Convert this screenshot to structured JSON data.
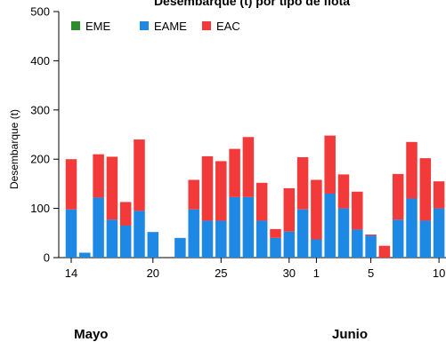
{
  "chart_data": {
    "type": "bar",
    "stacked": true,
    "title": "Desembarque (t) por tipo de flota",
    "ylabel": "Desembarque (t)",
    "xlabel": "",
    "ylim": [
      0,
      500
    ],
    "yticks": [
      0,
      100,
      200,
      300,
      400,
      500
    ],
    "grid": false,
    "legend_position": "top-left",
    "x": [
      "May 14",
      "May 15",
      "May 16",
      "May 17",
      "May 18",
      "May 19",
      "May 20",
      "May 21",
      "May 22",
      "May 23",
      "May 24",
      "May 25",
      "May 26",
      "May 27",
      "May 28",
      "May 29",
      "May 30",
      "May 31",
      "Jun 1",
      "Jun 2",
      "Jun 3",
      "Jun 4",
      "Jun 5",
      "Jun 6",
      "Jun 7",
      "Jun 8",
      "Jun 9",
      "Jun 10",
      "Jun 11",
      "Jun 12",
      "Jun 13"
    ],
    "x_ticks": [
      {
        "index": 0,
        "label": "14"
      },
      {
        "index": 6,
        "label": "20"
      },
      {
        "index": 11,
        "label": "25"
      },
      {
        "index": 16,
        "label": "30"
      },
      {
        "index": 18,
        "label": "1"
      },
      {
        "index": 22,
        "label": "5"
      },
      {
        "index": 27,
        "label": "10"
      }
    ],
    "months": [
      {
        "label": "Mayo",
        "index": 1
      },
      {
        "label": "Junio",
        "index": 20
      }
    ],
    "series": [
      {
        "name": "EME",
        "color": "#2e8b2e",
        "values": [
          0,
          0,
          0,
          0,
          0,
          0,
          0,
          0,
          0,
          0,
          0,
          0,
          0,
          0,
          0,
          0,
          0,
          0,
          0,
          0,
          0,
          0,
          0,
          0,
          0,
          0,
          0,
          0,
          0,
          0,
          0
        ]
      },
      {
        "name": "EAME",
        "color": "#1e88e5",
        "values": [
          98,
          10,
          122,
          77,
          65,
          95,
          52,
          0,
          40,
          98,
          75,
          75,
          123,
          123,
          75,
          40,
          53,
          98,
          37,
          130,
          100,
          57,
          45,
          0,
          77,
          120,
          75,
          100,
          58,
          45,
          100
        ]
      },
      {
        "name": "EAC",
        "color": "#f23a3a",
        "values": [
          102,
          0,
          88,
          128,
          48,
          145,
          0,
          0,
          0,
          60,
          131,
          121,
          98,
          122,
          77,
          18,
          88,
          106,
          121,
          118,
          69,
          77,
          2,
          24,
          93,
          115,
          127,
          55,
          42,
          15,
          80
        ]
      }
    ]
  }
}
